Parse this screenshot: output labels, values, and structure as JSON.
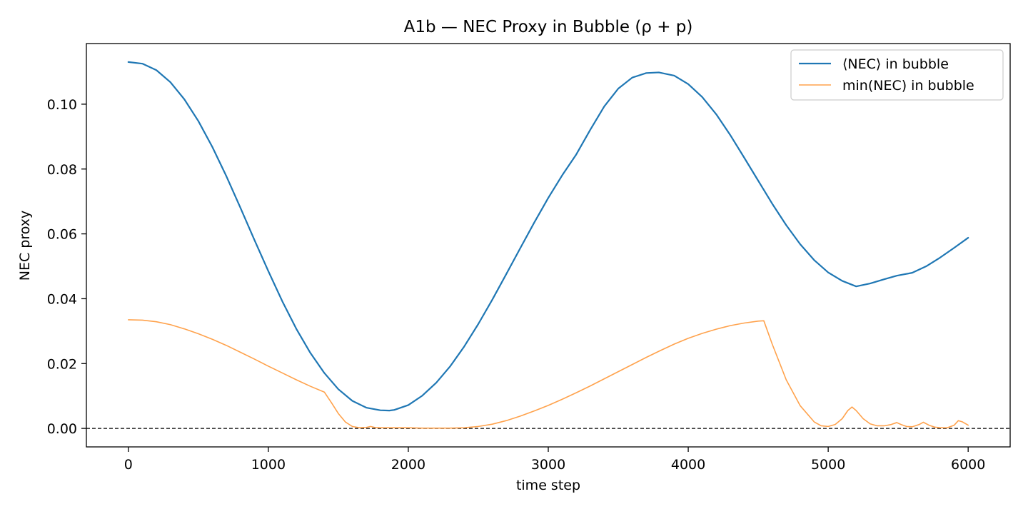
{
  "chart_data": {
    "type": "line",
    "title": "A1b — NEC Proxy in Bubble (ρ + p)",
    "xlabel": "time step",
    "ylabel": "NEC proxy",
    "xlim": [
      -300,
      6300
    ],
    "ylim": [
      -0.0057,
      0.1187
    ],
    "xticks": [
      0,
      1000,
      2000,
      3000,
      4000,
      5000,
      6000
    ],
    "xtick_labels": [
      "0",
      "1000",
      "2000",
      "3000",
      "4000",
      "5000",
      "6000"
    ],
    "yticks": [
      0.0,
      0.02,
      0.04,
      0.06,
      0.08,
      0.1
    ],
    "ytick_labels": [
      "0.00",
      "0.02",
      "0.04",
      "0.06",
      "0.08",
      "0.10"
    ],
    "grid": false,
    "legend_position": "top-right",
    "reference_line": {
      "y": 0.0,
      "style": "dashed",
      "color": "#000000"
    },
    "series": [
      {
        "name": "⟨NEC⟩ in bubble",
        "color": "#1f77b4",
        "x": [
          0,
          100,
          200,
          300,
          400,
          500,
          600,
          700,
          800,
          900,
          1000,
          1100,
          1200,
          1300,
          1400,
          1500,
          1600,
          1700,
          1800,
          1865,
          1900,
          2000,
          2100,
          2200,
          2300,
          2400,
          2500,
          2600,
          2700,
          2800,
          2900,
          3000,
          3100,
          3200,
          3300,
          3400,
          3500,
          3600,
          3700,
          3790,
          3900,
          4000,
          4100,
          4200,
          4300,
          4400,
          4500,
          4600,
          4700,
          4800,
          4900,
          5000,
          5100,
          5200,
          5300,
          5400,
          5490,
          5600,
          5700,
          5800,
          5900,
          6000
        ],
        "values": [
          0.113,
          0.1125,
          0.1105,
          0.1068,
          0.1015,
          0.0948,
          0.0868,
          0.0778,
          0.0681,
          0.0582,
          0.0485,
          0.0392,
          0.0307,
          0.0233,
          0.0171,
          0.0121,
          0.0085,
          0.0064,
          0.0056,
          0.0055,
          0.0057,
          0.0072,
          0.0101,
          0.0141,
          0.0192,
          0.0253,
          0.0322,
          0.0397,
          0.0476,
          0.0556,
          0.0635,
          0.0711,
          0.0781,
          0.0845,
          0.0921,
          0.0993,
          0.1048,
          0.1082,
          0.1096,
          0.1098,
          0.1088,
          0.1062,
          0.1022,
          0.0969,
          0.0905,
          0.0835,
          0.0764,
          0.0693,
          0.0627,
          0.0568,
          0.0519,
          0.0481,
          0.0455,
          0.0438,
          0.0447,
          0.046,
          0.0471,
          0.048,
          0.05,
          0.0527,
          0.0557,
          0.0588
        ]
      },
      {
        "name": "min(NEC) in bubble",
        "color": "#ffa24c",
        "x": [
          0,
          100,
          200,
          300,
          400,
          500,
          600,
          700,
          800,
          900,
          1000,
          1100,
          1200,
          1300,
          1400,
          1450,
          1500,
          1550,
          1600,
          1650,
          1700,
          1730,
          1760,
          1800,
          1900,
          2000,
          2100,
          2200,
          2300,
          2400,
          2500,
          2600,
          2700,
          2800,
          2900,
          3000,
          3100,
          3200,
          3300,
          3400,
          3500,
          3600,
          3700,
          3800,
          3900,
          4000,
          4100,
          4200,
          4300,
          4400,
          4500,
          4540,
          4600,
          4700,
          4800,
          4900,
          4950,
          5000,
          5050,
          5100,
          5140,
          5170,
          5200,
          5250,
          5300,
          5350,
          5400,
          5450,
          5490,
          5520,
          5560,
          5600,
          5650,
          5680,
          5720,
          5760,
          5800,
          5850,
          5900,
          5930,
          5960,
          6000
        ],
        "values": [
          0.0335,
          0.0334,
          0.0329,
          0.032,
          0.0307,
          0.0292,
          0.0275,
          0.0256,
          0.0235,
          0.0214,
          0.0192,
          0.0171,
          0.015,
          0.013,
          0.0112,
          0.008,
          0.0046,
          0.002,
          0.0006,
          0.0002,
          0.0003,
          0.0006,
          0.0003,
          0.0002,
          0.0002,
          0.0002,
          0.0001,
          0.0001,
          0.0001,
          0.0002,
          0.0006,
          0.0013,
          0.0024,
          0.0038,
          0.0054,
          0.0071,
          0.009,
          0.011,
          0.0131,
          0.0153,
          0.0175,
          0.0197,
          0.0219,
          0.024,
          0.026,
          0.0278,
          0.0293,
          0.0306,
          0.0317,
          0.0325,
          0.0331,
          0.0332,
          0.026,
          0.015,
          0.007,
          0.002,
          0.0008,
          0.0006,
          0.0012,
          0.003,
          0.0055,
          0.0066,
          0.0055,
          0.003,
          0.0014,
          0.0008,
          0.0008,
          0.0012,
          0.0018,
          0.0012,
          0.0006,
          0.0005,
          0.0012,
          0.0019,
          0.001,
          0.0004,
          0.0002,
          0.0002,
          0.001,
          0.0024,
          0.002,
          0.001
        ]
      }
    ]
  }
}
